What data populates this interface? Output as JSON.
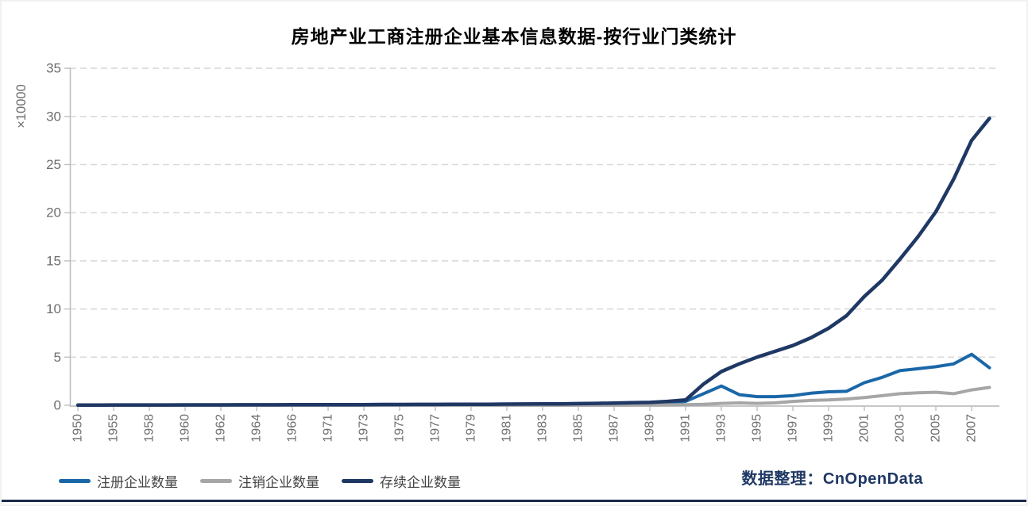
{
  "credit": "数据整理：CnOpenData",
  "colors": {
    "registered": "#1a67a8",
    "deregistered": "#a6a6a6",
    "surviving": "#1f3864",
    "grid": "#d9d9d9",
    "axis": "#bfbfbf",
    "tick_text": "#6e6e6e",
    "legend_text": "#444444",
    "credit_text": "#1f3864",
    "bottom_bar": "#1b2a4a"
  },
  "chart_data": {
    "type": "line",
    "title": "房地产业工商注册企业基本信息数据-按行业门类统计",
    "xlabel": "",
    "ylabel": "×10000",
    "ylim": [
      0,
      35
    ],
    "ytick_step": 5,
    "yticks": [
      0,
      5,
      10,
      15,
      20,
      25,
      30,
      35
    ],
    "grid": "horizontal-dashed",
    "legend_position": "bottom-left",
    "x_tick_labels": [
      "1950",
      "1955",
      "1958",
      "1960",
      "1962",
      "1964",
      "1966",
      "1971",
      "1973",
      "1975",
      "1977",
      "1979",
      "1981",
      "1983",
      "1985",
      "1987",
      "1989",
      "1991",
      "1993",
      "1995",
      "1997",
      "1999",
      "2001",
      "2003",
      "2005",
      "2007"
    ],
    "categories": [
      "1950",
      "",
      "1955",
      "",
      "1958",
      "",
      "1960",
      "",
      "1962",
      "",
      "1964",
      "",
      "1966",
      "",
      "1971",
      "",
      "1973",
      "",
      "1975",
      "",
      "1977",
      "",
      "1979",
      "",
      "1981",
      "",
      "1983",
      "",
      "1985",
      "",
      "1987",
      "",
      "1989",
      "",
      "1991",
      "",
      "1993",
      "",
      "1995",
      "",
      "1997",
      "",
      "1999",
      "",
      "2001",
      "",
      "2003",
      "",
      "2005",
      "",
      "2007",
      ""
    ],
    "series": [
      {
        "name": "注册企业数量",
        "color_key": "registered",
        "values": [
          0.02,
          0.02,
          0.02,
          0.02,
          0.02,
          0.02,
          0.02,
          0.02,
          0.02,
          0.02,
          0.03,
          0.03,
          0.03,
          0.03,
          0.03,
          0.03,
          0.04,
          0.04,
          0.04,
          0.04,
          0.05,
          0.05,
          0.05,
          0.05,
          0.06,
          0.06,
          0.07,
          0.08,
          0.08,
          0.09,
          0.1,
          0.12,
          0.15,
          0.25,
          0.4,
          1.2,
          2.0,
          1.1,
          0.9,
          0.9,
          1.0,
          1.25,
          1.4,
          1.45,
          2.35,
          2.9,
          3.6,
          3.8,
          4.0,
          4.3,
          5.3,
          3.9
        ]
      },
      {
        "name": "注销企业数量",
        "color_key": "deregistered",
        "values": [
          0.01,
          0.01,
          0.01,
          0.01,
          0.01,
          0.01,
          0.01,
          0.01,
          0.01,
          0.01,
          0.01,
          0.01,
          0.01,
          0.01,
          0.01,
          0.01,
          0.01,
          0.01,
          0.01,
          0.01,
          0.01,
          0.01,
          0.01,
          0.01,
          0.01,
          0.01,
          0.01,
          0.01,
          0.01,
          0.01,
          0.02,
          0.02,
          0.03,
          0.04,
          0.06,
          0.1,
          0.2,
          0.25,
          0.2,
          0.25,
          0.4,
          0.5,
          0.55,
          0.65,
          0.8,
          1.0,
          1.2,
          1.3,
          1.35,
          1.2,
          1.6,
          1.85
        ]
      },
      {
        "name": "存续企业数量",
        "color_key": "surviving",
        "values": [
          0.02,
          0.02,
          0.03,
          0.03,
          0.03,
          0.03,
          0.04,
          0.04,
          0.04,
          0.05,
          0.05,
          0.05,
          0.06,
          0.06,
          0.06,
          0.07,
          0.07,
          0.08,
          0.08,
          0.09,
          0.09,
          0.1,
          0.1,
          0.11,
          0.12,
          0.13,
          0.14,
          0.15,
          0.17,
          0.2,
          0.22,
          0.26,
          0.3,
          0.4,
          0.55,
          2.2,
          3.5,
          4.3,
          5.0,
          5.6,
          6.2,
          7.0,
          8.0,
          9.3,
          11.3,
          13.0,
          15.2,
          17.5,
          20.1,
          23.5,
          27.5,
          29.8
        ]
      }
    ]
  }
}
